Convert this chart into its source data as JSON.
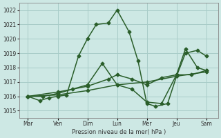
{
  "xlabel": "Pression niveau de la mer( hPa )",
  "background_color": "#cde8e4",
  "grid_color": "#a8ccc8",
  "line_color": "#2a5e2a",
  "xtick_labels": [
    "Mar",
    "Ven",
    "Dim",
    "Lun",
    "Mer",
    "Jeu",
    "Sam"
  ],
  "xtick_positions": [
    0,
    1,
    2,
    3,
    4,
    5,
    6
  ],
  "ylim": [
    1014.5,
    1022.5
  ],
  "ytick_positions": [
    1015,
    1016,
    1017,
    1018,
    1019,
    1020,
    1021,
    1022
  ],
  "series": [
    {
      "x": [
        0.0,
        0.4,
        0.7,
        1.0,
        1.3,
        1.7,
        2.0,
        2.3,
        2.7,
        3.0,
        3.4,
        3.7,
        4.0,
        4.3,
        4.7,
        5.0,
        5.3,
        5.7,
        6.0
      ],
      "y": [
        1016.0,
        1015.7,
        1015.9,
        1016.0,
        1016.1,
        1018.8,
        1020.0,
        1021.0,
        1021.1,
        1022.0,
        1020.5,
        1018.5,
        1015.5,
        1015.3,
        1015.5,
        1017.4,
        1019.0,
        1019.2,
        1018.8
      ],
      "marker": "D",
      "markersize": 2.5,
      "linewidth": 1.1
    },
    {
      "x": [
        0.0,
        0.5,
        1.0,
        1.5,
        2.0,
        2.5,
        3.0,
        3.5,
        4.0,
        4.5,
        5.0,
        5.3,
        5.7,
        6.0
      ],
      "y": [
        1016.0,
        1016.0,
        1016.2,
        1016.5,
        1016.8,
        1018.3,
        1016.8,
        1016.5,
        1015.6,
        1015.5,
        1017.5,
        1019.3,
        1018.0,
        1017.8
      ],
      "marker": "D",
      "markersize": 2.5,
      "linewidth": 1.1
    },
    {
      "x": [
        0.0,
        1.0,
        2.0,
        2.7,
        3.0,
        3.5,
        4.0,
        4.5,
        5.0,
        5.5,
        6.0
      ],
      "y": [
        1016.0,
        1016.3,
        1016.7,
        1017.2,
        1017.5,
        1017.2,
        1016.8,
        1017.3,
        1017.5,
        1017.5,
        1017.8
      ],
      "marker": "D",
      "markersize": 2.5,
      "linewidth": 1.1
    },
    {
      "x": [
        0.0,
        1.0,
        2.0,
        3.0,
        4.0,
        5.0,
        6.0
      ],
      "y": [
        1016.0,
        1016.1,
        1016.4,
        1016.8,
        1017.0,
        1017.4,
        1017.7
      ],
      "marker": "D",
      "markersize": 2.5,
      "linewidth": 1.1
    }
  ]
}
